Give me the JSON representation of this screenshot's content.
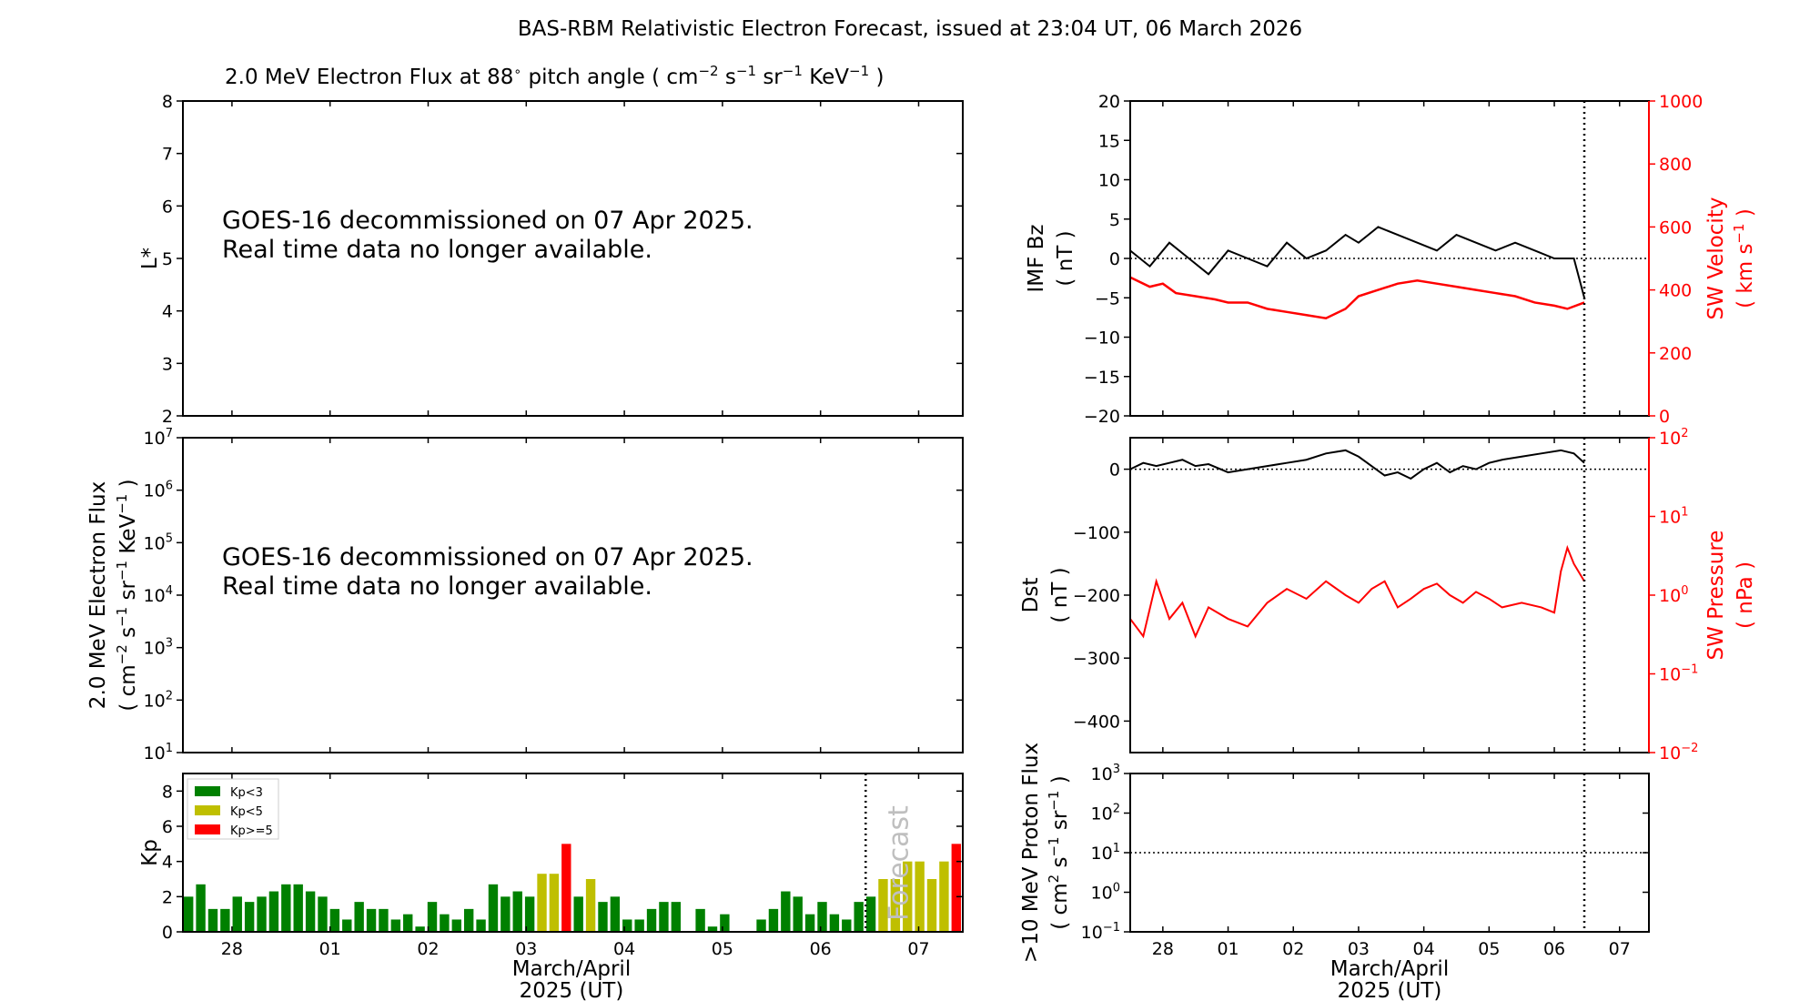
{
  "figure": {
    "title": "BAS-RBM Relativistic Electron Forecast, issued at 23:04 UT, 06 March 2026",
    "shared_xlabel_line1": "March/April",
    "shared_xlabel_line2": "2025 (UT)",
    "colors": {
      "kp_low": "#008000",
      "kp_mid": "#bfbf00",
      "kp_high": "#ff0000",
      "red_axis": "#ff0000"
    }
  },
  "chart_data": [
    {
      "id": "flux_lstar",
      "type": "heatmap",
      "title": "2.0 MeV Electron Flux at 88$^\\circ$ pitch angle ( cm$^{-2}$ s$^{-1}$ sr$^{-1}$ KeV$^{-1}$ )",
      "title_parts": {
        "lead": "2.0 MeV Electron Flux at 88",
        "deg": "∘",
        "mid": " pitch angle ( cm",
        "e1": "−2",
        "s": " s",
        "e2": "−1",
        "sr": " sr",
        "e3": "−1",
        "kev": " KeV",
        "e4": "−1",
        "tail": " )"
      },
      "ylabel": "L*",
      "ylim": [
        2,
        8
      ],
      "yticks": [
        "2",
        "3",
        "4",
        "5",
        "6",
        "7",
        "8"
      ],
      "message_line1": "GOES-16 decommissioned on 07 Apr 2025.",
      "message_line2": "Real time data no longer available."
    },
    {
      "id": "flux_time",
      "type": "line",
      "ylabel_line1": "2.0 MeV Electron Flux",
      "ylabel_line2_parts": {
        "a": "( cm",
        "e1": "−2",
        "b": " s",
        "e2": "−1",
        "c": " sr",
        "e3": "−1",
        "d": " KeV",
        "e4": "−1",
        "e": " )"
      },
      "yscale": "log",
      "ylim": [
        10,
        10000000
      ],
      "yticks": [
        {
          "base": "10",
          "exp": "1"
        },
        {
          "base": "10",
          "exp": "2"
        },
        {
          "base": "10",
          "exp": "3"
        },
        {
          "base": "10",
          "exp": "4"
        },
        {
          "base": "10",
          "exp": "5"
        },
        {
          "base": "10",
          "exp": "6"
        },
        {
          "base": "10",
          "exp": "7"
        }
      ],
      "message_line1": "GOES-16 decommissioned on 07 Apr 2025.",
      "message_line2": "Real time data no longer available."
    },
    {
      "id": "kp",
      "type": "bar",
      "ylabel": "Kp",
      "ylim": [
        0,
        9
      ],
      "yticks": [
        "0",
        "2",
        "4",
        "6",
        "8"
      ],
      "xlim_days": [
        27.5,
        35.45
      ],
      "xticks": [
        {
          "v": 28,
          "label": "28"
        },
        {
          "v": 29,
          "label": "01"
        },
        {
          "v": 30,
          "label": "02"
        },
        {
          "v": 31,
          "label": "03"
        },
        {
          "v": 32,
          "label": "04"
        },
        {
          "v": 33,
          "label": "05"
        },
        {
          "v": 34,
          "label": "06"
        },
        {
          "v": 35,
          "label": "07"
        }
      ],
      "forecast_line_x": 34.46,
      "forecast_label": "Forecast",
      "legend": [
        {
          "label": "Kp<3",
          "color": "#008000"
        },
        {
          "label": "Kp<5",
          "color": "#bfbf00"
        },
        {
          "label": "Kp>=5",
          "color": "#ff0000"
        }
      ],
      "values": [
        2.0,
        2.7,
        1.3,
        1.3,
        2.0,
        1.7,
        2.0,
        2.3,
        2.7,
        2.7,
        2.3,
        2.0,
        1.3,
        0.7,
        1.7,
        1.3,
        1.3,
        0.7,
        1.0,
        0.3,
        1.7,
        1.0,
        0.7,
        1.3,
        0.7,
        2.7,
        2.0,
        2.3,
        2.0,
        3.3,
        3.3,
        5.0,
        2.0,
        3.0,
        1.7,
        2.0,
        0.7,
        0.7,
        1.3,
        1.7,
        1.7,
        0.0,
        1.3,
        0.3,
        1.0,
        0.0,
        0.0,
        0.7,
        1.3,
        2.3,
        2.0,
        1.0,
        1.7,
        1.0,
        0.7,
        1.7,
        2.0,
        3.0,
        3.0,
        4.0,
        4.0,
        3.0,
        4.0,
        5.0
      ]
    },
    {
      "id": "imf_sw",
      "type": "line",
      "ylabel_line1": "IMF Bz",
      "ylabel_line2": "( nT )",
      "ylim": [
        -20,
        20
      ],
      "yticks": [
        "−20",
        "−15",
        "−10",
        "−5",
        "0",
        "5",
        "10",
        "15",
        "20"
      ],
      "y2label_line1": "SW Velocity",
      "y2label_line2_parts": {
        "a": "( km s",
        "e": "−1",
        "b": " )"
      },
      "y2lim": [
        0,
        1000
      ],
      "y2ticks": [
        "0",
        "200",
        "400",
        "600",
        "800",
        "1000"
      ],
      "xlim_days": [
        27.5,
        35.45
      ],
      "now_line_x": 34.46,
      "series": [
        {
          "name": "IMF Bz",
          "color": "#000000",
          "x": [
            27.5,
            27.8,
            28.1,
            28.4,
            28.7,
            29.0,
            29.3,
            29.6,
            29.9,
            30.2,
            30.5,
            30.8,
            31.0,
            31.3,
            31.6,
            31.9,
            32.2,
            32.5,
            32.8,
            33.1,
            33.4,
            33.7,
            34.0,
            34.3,
            34.46
          ],
          "y": [
            1,
            -1,
            2,
            0,
            -2,
            1,
            0,
            -1,
            2,
            0,
            1,
            3,
            2,
            4,
            3,
            2,
            1,
            3,
            2,
            1,
            2,
            1,
            0,
            0,
            -5
          ]
        },
        {
          "name": "SW Velocity",
          "color": "#ff0000",
          "axis": "right",
          "x": [
            27.5,
            27.8,
            28.0,
            28.2,
            28.5,
            28.8,
            29.0,
            29.3,
            29.6,
            29.9,
            30.2,
            30.5,
            30.8,
            31.0,
            31.3,
            31.6,
            31.9,
            32.2,
            32.5,
            32.8,
            33.1,
            33.4,
            33.7,
            34.0,
            34.2,
            34.46
          ],
          "y": [
            440,
            410,
            420,
            390,
            380,
            370,
            360,
            360,
            340,
            330,
            320,
            310,
            340,
            380,
            400,
            420,
            430,
            420,
            410,
            400,
            390,
            380,
            360,
            350,
            340,
            360
          ]
        }
      ]
    },
    {
      "id": "dst_pressure",
      "type": "line",
      "ylabel_line1": "Dst",
      "ylabel_line2": "( nT )",
      "ylim": [
        -450,
        50
      ],
      "yticks": [
        "−400",
        "−300",
        "−200",
        "−100",
        "0"
      ],
      "y2label_line1": "SW Pressure",
      "y2label_line2": "( nPa )",
      "y2scale": "log",
      "y2lim": [
        0.01,
        100
      ],
      "y2ticks": [
        {
          "base": "10",
          "exp": "−2"
        },
        {
          "base": "10",
          "exp": "−1"
        },
        {
          "base": "10",
          "exp": "0"
        },
        {
          "base": "10",
          "exp": "1"
        },
        {
          "base": "10",
          "exp": "2"
        }
      ],
      "xlim_days": [
        27.5,
        35.45
      ],
      "now_line_x": 34.46,
      "series": [
        {
          "name": "Dst",
          "color": "#000000",
          "x": [
            27.5,
            27.7,
            27.9,
            28.1,
            28.3,
            28.5,
            28.7,
            29.0,
            29.3,
            29.6,
            29.9,
            30.2,
            30.5,
            30.8,
            31.0,
            31.2,
            31.4,
            31.6,
            31.8,
            32.0,
            32.2,
            32.4,
            32.6,
            32.8,
            33.0,
            33.2,
            33.5,
            33.8,
            34.1,
            34.3,
            34.46
          ],
          "y": [
            0,
            10,
            5,
            10,
            15,
            5,
            8,
            -5,
            0,
            5,
            10,
            15,
            25,
            30,
            20,
            5,
            -10,
            -5,
            -15,
            0,
            10,
            -5,
            5,
            0,
            10,
            15,
            20,
            25,
            30,
            25,
            10
          ]
        },
        {
          "name": "SW Pressure",
          "color": "#ff0000",
          "axis": "right",
          "x": [
            27.5,
            27.7,
            27.9,
            28.1,
            28.3,
            28.5,
            28.7,
            29.0,
            29.3,
            29.6,
            29.9,
            30.2,
            30.5,
            30.8,
            31.0,
            31.2,
            31.4,
            31.6,
            31.8,
            32.0,
            32.2,
            32.4,
            32.6,
            32.8,
            33.0,
            33.2,
            33.5,
            33.8,
            34.0,
            34.1,
            34.2,
            34.3,
            34.46
          ],
          "y": [
            0.5,
            0.3,
            1.5,
            0.5,
            0.8,
            0.3,
            0.7,
            0.5,
            0.4,
            0.8,
            1.2,
            0.9,
            1.5,
            1.0,
            0.8,
            1.2,
            1.5,
            0.7,
            0.9,
            1.2,
            1.4,
            1.0,
            0.8,
            1.1,
            0.9,
            0.7,
            0.8,
            0.7,
            0.6,
            2.0,
            4.0,
            2.5,
            1.5
          ]
        }
      ]
    },
    {
      "id": "proton",
      "type": "line",
      "ylabel_line1": ">10 MeV Proton Flux",
      "ylabel_line2_parts": {
        "a": "( cm",
        "e1": "2",
        "b": " s",
        "e2": "−1",
        "c": " sr",
        "e3": "−1",
        "d": " )"
      },
      "yscale": "log",
      "ylim": [
        0.1,
        1000
      ],
      "yticks": [
        {
          "base": "10",
          "exp": "−1"
        },
        {
          "base": "10",
          "exp": "0"
        },
        {
          "base": "10",
          "exp": "1"
        },
        {
          "base": "10",
          "exp": "2"
        },
        {
          "base": "10",
          "exp": "3"
        }
      ],
      "threshold": 10,
      "xlim_days": [
        27.5,
        35.45
      ],
      "xticks": [
        {
          "v": 28,
          "label": "28"
        },
        {
          "v": 29,
          "label": "01"
        },
        {
          "v": 30,
          "label": "02"
        },
        {
          "v": 31,
          "label": "03"
        },
        {
          "v": 32,
          "label": "04"
        },
        {
          "v": 33,
          "label": "05"
        },
        {
          "v": 34,
          "label": "06"
        },
        {
          "v": 35,
          "label": "07"
        }
      ],
      "now_line_x": 34.46
    }
  ]
}
